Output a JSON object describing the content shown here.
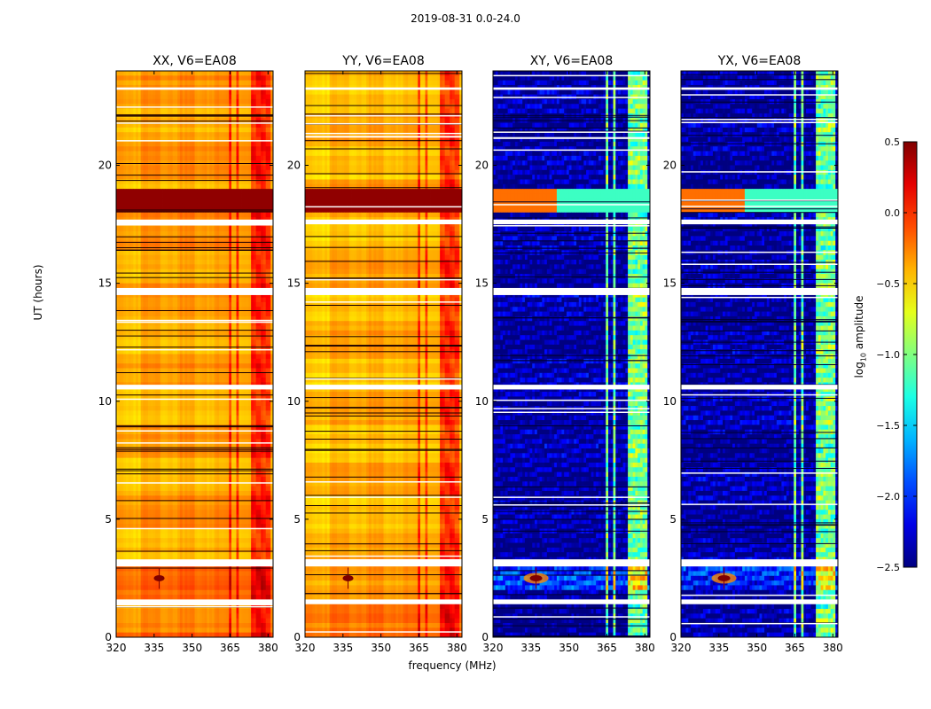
{
  "figure_title": "2019-08-31 0.0-24.0",
  "colorbar": {
    "label_base": "log",
    "label_sub": "10",
    "label_tail": " amplitude",
    "ticks": [
      0.5,
      0.0,
      -0.5,
      -1.0,
      -1.5,
      -2.0,
      -2.5
    ],
    "tick_labels": [
      "0.5",
      "0.0",
      "−0.5",
      "−1.0",
      "−1.5",
      "−2.0",
      "−2.5"
    ],
    "range": [
      -2.5,
      0.5
    ],
    "colormap": "jet"
  },
  "chart_data": {
    "type": "heatmap",
    "title": "2019-08-31 0.0-24.0",
    "xlabel": "frequency (MHz)",
    "ylabel": "UT (hours)",
    "xlim": [
      320,
      382
    ],
    "ylim": [
      0,
      24
    ],
    "xticks": [
      320,
      335,
      350,
      365,
      380
    ],
    "yticks": [
      0,
      5,
      10,
      15,
      20
    ],
    "value_range": [
      -2.5,
      0.5
    ],
    "panels": [
      {
        "title": "XX, V6=EA08",
        "polarization": "XX",
        "base_level": -0.25
      },
      {
        "title": "YY, V6=EA08",
        "polarization": "YY",
        "base_level": -0.3
      },
      {
        "title": "XY, V6=EA08",
        "polarization": "XY",
        "base_level": -2.2
      },
      {
        "title": "YX, V6=EA08",
        "polarization": "YX",
        "base_level": -2.2
      }
    ],
    "flagged_time_ranges_hours": [
      [
        1.4,
        1.6
      ],
      [
        3.0,
        3.3
      ],
      [
        10.5,
        10.7
      ],
      [
        14.5,
        14.8
      ],
      [
        17.5,
        17.7
      ],
      [
        23.2,
        23.3
      ]
    ],
    "strong_rfi_time_hours": [
      18.0,
      19.0
    ],
    "rfi_source": {
      "freq_mhz": 337,
      "time_hours": 2.5
    },
    "rfi_channels_mhz": [
      365,
      368,
      374,
      376,
      378,
      380
    ]
  }
}
